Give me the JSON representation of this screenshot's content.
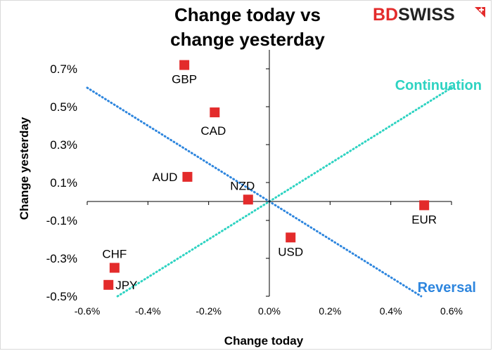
{
  "brand": {
    "logo_part1": "BD",
    "logo_part2": "SWISS",
    "primary_color": "#e32b2b",
    "secondary_color": "#222222"
  },
  "chart_data": {
    "type": "scatter",
    "title_lines": [
      "Change today vs",
      "change yesterday"
    ],
    "xlabel": "Change today",
    "ylabel": "Change yesterday",
    "xlim": [
      -0.6,
      0.6
    ],
    "ylim": [
      -0.5,
      0.8
    ],
    "x_ticks": [
      -0.6,
      -0.4,
      -0.2,
      0.0,
      0.2,
      0.4,
      0.6
    ],
    "x_tick_labels": [
      "-0.6%",
      "-0.4%",
      "-0.2%",
      "0.0%",
      "0.2%",
      "0.4%",
      "0.6%"
    ],
    "y_ticks": [
      0.7,
      0.5,
      0.3,
      0.1,
      -0.1,
      -0.3,
      -0.5
    ],
    "y_tick_labels": [
      "0.7%",
      "0.5%",
      "0.3%",
      "0.1%",
      "-0.1%",
      "-0.3%",
      "-0.5%"
    ],
    "marker_color": "#e32b2b",
    "points": [
      {
        "label": "GBP",
        "x": -0.28,
        "y": 0.72,
        "label_pos": "below"
      },
      {
        "label": "CAD",
        "x": -0.18,
        "y": 0.47,
        "label_pos": "below-right"
      },
      {
        "label": "AUD",
        "x": -0.27,
        "y": 0.13,
        "label_pos": "left"
      },
      {
        "label": "NZD",
        "x": -0.07,
        "y": 0.01,
        "label_pos": "above-left"
      },
      {
        "label": "EUR",
        "x": 0.51,
        "y": -0.02,
        "label_pos": "below"
      },
      {
        "label": "USD",
        "x": 0.07,
        "y": -0.19,
        "label_pos": "below"
      },
      {
        "label": "CHF",
        "x": -0.51,
        "y": -0.35,
        "label_pos": "above"
      },
      {
        "label": "JPY",
        "x": -0.53,
        "y": -0.44,
        "label_pos": "right"
      }
    ],
    "reference_lines": [
      {
        "name": "Continuation",
        "color": "#2ed3c2",
        "from": [
          -0.5,
          -0.5
        ],
        "to": [
          0.6,
          0.6
        ]
      },
      {
        "name": "Reversal",
        "color": "#2e86de",
        "from": [
          -0.6,
          0.6
        ],
        "to": [
          0.5,
          -0.5
        ]
      }
    ],
    "annotations": [
      {
        "text": "Continuation",
        "color": "#2ed3c2"
      },
      {
        "text": "Reversal",
        "color": "#2e86de"
      }
    ]
  }
}
